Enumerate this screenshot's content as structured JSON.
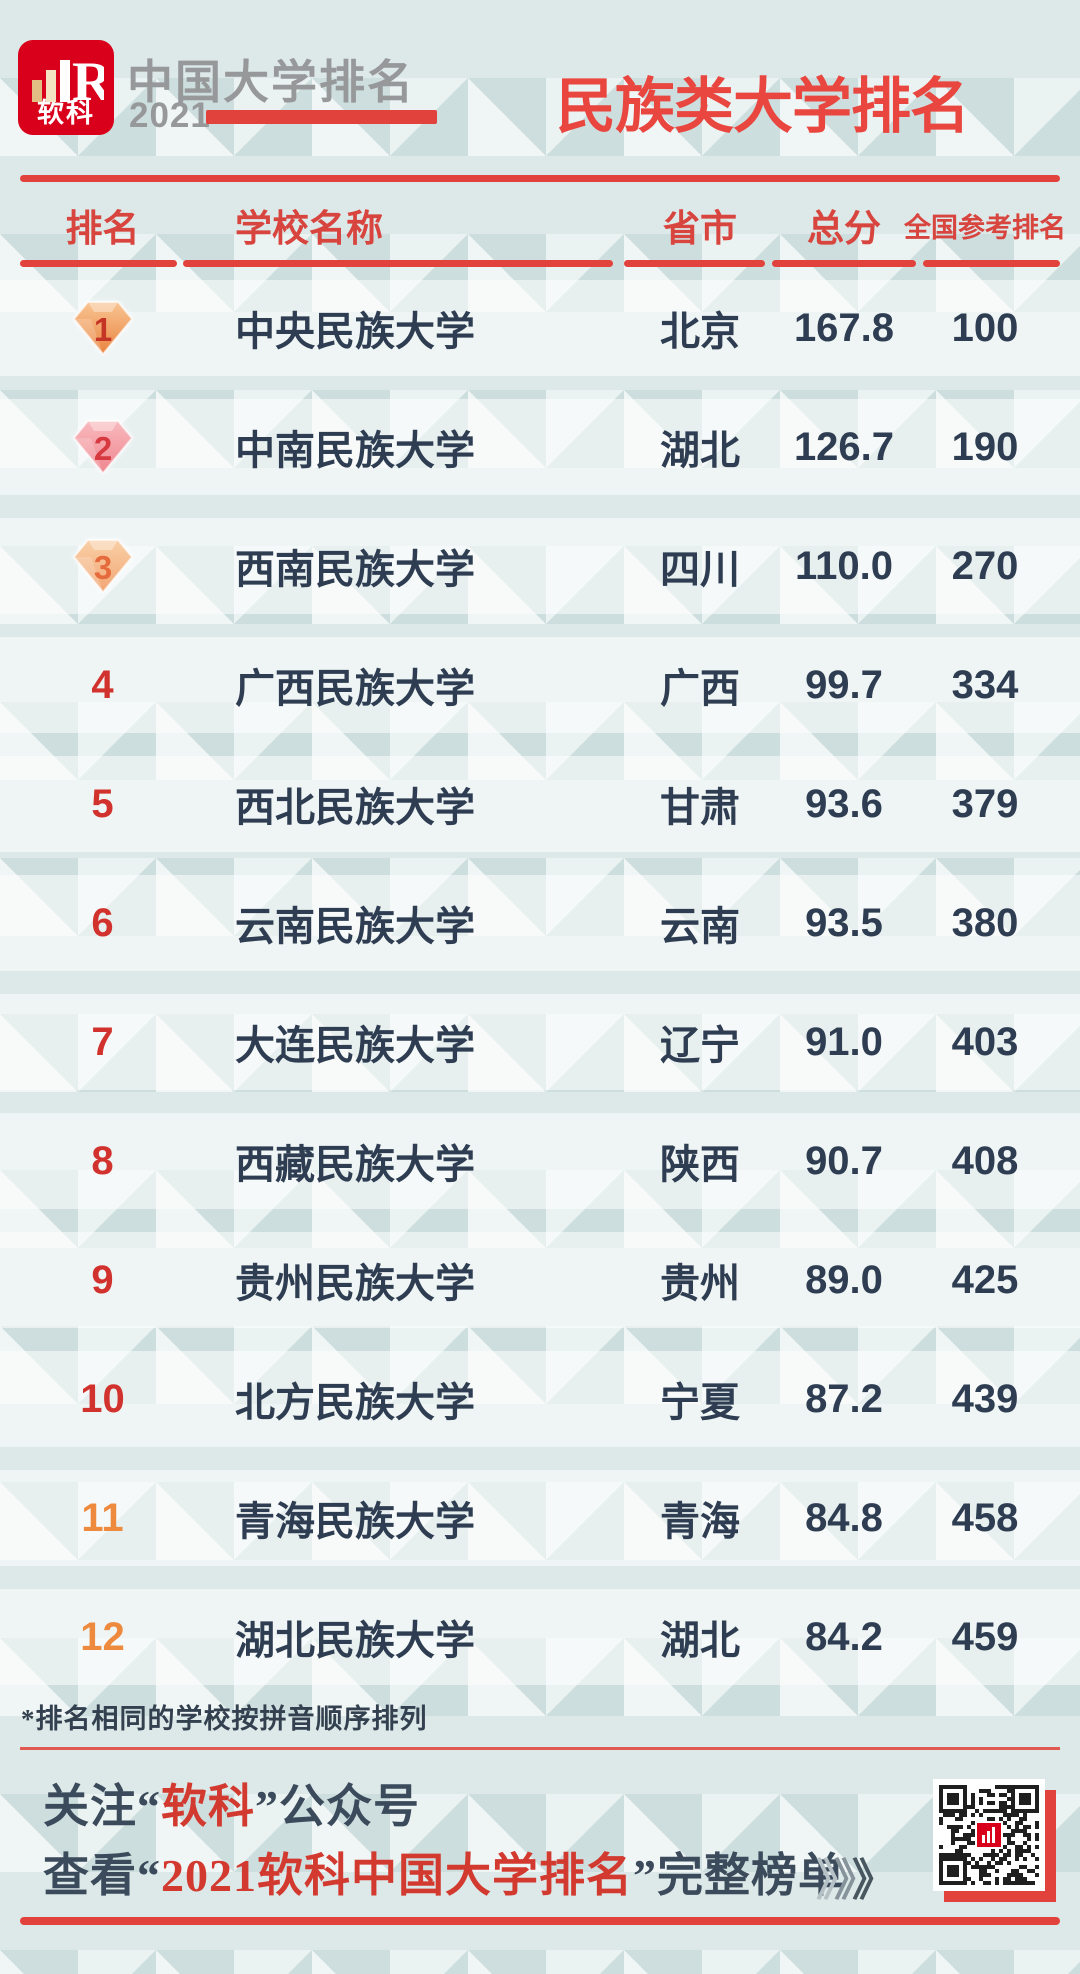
{
  "brand": {
    "logo_text": "软科",
    "name": "中国大学排名",
    "year": "2021"
  },
  "title": "民族类大学排名",
  "table": {
    "columns": [
      "排名",
      "学校名称",
      "省市",
      "总分",
      "全国参考排名"
    ],
    "rows": [
      {
        "rank": "1",
        "badge": true,
        "school": "中央民族大学",
        "province": "北京",
        "score": "167.8",
        "national_rank": "100"
      },
      {
        "rank": "2",
        "badge": true,
        "school": "中南民族大学",
        "province": "湖北",
        "score": "126.7",
        "national_rank": "190"
      },
      {
        "rank": "3",
        "badge": true,
        "school": "西南民族大学",
        "province": "四川",
        "score": "110.0",
        "national_rank": "270"
      },
      {
        "rank": "4",
        "badge": false,
        "school": "广西民族大学",
        "province": "广西",
        "score": "99.7",
        "national_rank": "334"
      },
      {
        "rank": "5",
        "badge": false,
        "school": "西北民族大学",
        "province": "甘肃",
        "score": "93.6",
        "national_rank": "379"
      },
      {
        "rank": "6",
        "badge": false,
        "school": "云南民族大学",
        "province": "云南",
        "score": "93.5",
        "national_rank": "380"
      },
      {
        "rank": "7",
        "badge": false,
        "school": "大连民族大学",
        "province": "辽宁",
        "score": "91.0",
        "national_rank": "403"
      },
      {
        "rank": "8",
        "badge": false,
        "school": "西藏民族大学",
        "province": "陕西",
        "score": "90.7",
        "national_rank": "408"
      },
      {
        "rank": "9",
        "badge": false,
        "school": "贵州民族大学",
        "province": "贵州",
        "score": "89.0",
        "national_rank": "425"
      },
      {
        "rank": "10",
        "badge": false,
        "school": "北方民族大学",
        "province": "宁夏",
        "score": "87.2",
        "national_rank": "439"
      },
      {
        "rank": "11",
        "badge": false,
        "school": "青海民族大学",
        "province": "青海",
        "score": "84.8",
        "national_rank": "458",
        "rank_color": "orange"
      },
      {
        "rank": "12",
        "badge": false,
        "school": "湖北民族大学",
        "province": "湖北",
        "score": "84.2",
        "national_rank": "459",
        "rank_color": "orange"
      }
    ]
  },
  "footnote": "*排名相同的学校按拼音顺序排列",
  "footer": {
    "line1": {
      "pre": "关注“",
      "em": "软科",
      "post": "”公众号"
    },
    "line2": {
      "pre": "查看“",
      "em": "2021软科中国大学排名",
      "post": "”完整榜单"
    },
    "chevron": "》"
  },
  "colors": {
    "accent": "#e2423c",
    "title-red": "#e8463f",
    "header-red": "#d8443e",
    "rank-red": "#d2322d",
    "rank-orange": "#ee8a3e",
    "text-dark": "#2e3d51",
    "brand-gray": "#97989a",
    "logo-red": "#d9001b"
  },
  "badges": [
    {
      "top": "#f8c492",
      "bottom": "#ea8440",
      "num": "#c53526"
    },
    {
      "top": "#f8b9bd",
      "bottom": "#ef868f",
      "num": "#d6393f"
    },
    {
      "top": "#f9cfa6",
      "bottom": "#f2a674",
      "num": "#e56a3c"
    }
  ]
}
